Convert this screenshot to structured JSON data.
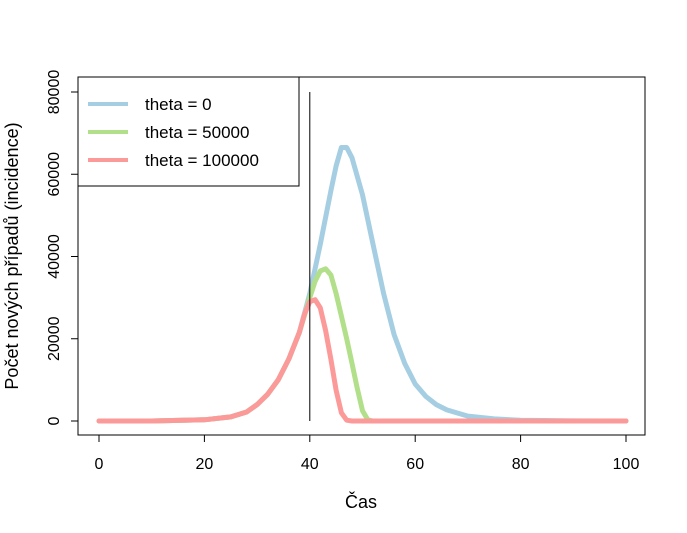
{
  "chart_data": {
    "type": "line",
    "title": "",
    "xlabel": "Čas",
    "ylabel": "Počet nových případů (incidence)",
    "xlim": [
      0,
      100
    ],
    "ylim": [
      0,
      80000
    ],
    "x_ticks": [
      0,
      20,
      40,
      60,
      80,
      100
    ],
    "y_ticks": [
      0,
      20000,
      40000,
      60000,
      80000
    ],
    "x_tick_labels": [
      "0",
      "20",
      "40",
      "60",
      "80",
      "100"
    ],
    "y_tick_labels": [
      "0",
      "20000",
      "40000",
      "60000",
      "80000"
    ],
    "grid": false,
    "legend_position": "top-left",
    "vertical_line": {
      "x": 40,
      "y_range": [
        0,
        80000
      ],
      "color": "#000000"
    },
    "series": [
      {
        "name": "theta = 0",
        "color": "#a6cee3",
        "points": [
          [
            0,
            0
          ],
          [
            10,
            0
          ],
          [
            20,
            300
          ],
          [
            25,
            1000
          ],
          [
            28,
            2200
          ],
          [
            30,
            4000
          ],
          [
            32,
            6500
          ],
          [
            34,
            10000
          ],
          [
            36,
            15000
          ],
          [
            38,
            21500
          ],
          [
            40,
            31000
          ],
          [
            42,
            43000
          ],
          [
            44,
            56000
          ],
          [
            45,
            62000
          ],
          [
            46,
            66500
          ],
          [
            47,
            66500
          ],
          [
            48,
            64000
          ],
          [
            50,
            55000
          ],
          [
            52,
            43000
          ],
          [
            54,
            31000
          ],
          [
            56,
            21000
          ],
          [
            58,
            14000
          ],
          [
            60,
            9000
          ],
          [
            62,
            6000
          ],
          [
            64,
            4000
          ],
          [
            66,
            2700
          ],
          [
            70,
            1200
          ],
          [
            75,
            500
          ],
          [
            80,
            200
          ],
          [
            90,
            30
          ],
          [
            100,
            0
          ]
        ]
      },
      {
        "name": "theta = 50000",
        "color": "#b2df8a",
        "points": [
          [
            0,
            0
          ],
          [
            10,
            0
          ],
          [
            20,
            300
          ],
          [
            25,
            1000
          ],
          [
            28,
            2200
          ],
          [
            30,
            4000
          ],
          [
            32,
            6500
          ],
          [
            34,
            10000
          ],
          [
            36,
            15000
          ],
          [
            38,
            21500
          ],
          [
            40,
            30000
          ],
          [
            41,
            34000
          ],
          [
            42,
            36500
          ],
          [
            43,
            37000
          ],
          [
            44,
            35500
          ],
          [
            45,
            31000
          ],
          [
            46,
            25500
          ],
          [
            47,
            20000
          ],
          [
            48,
            14000
          ],
          [
            49,
            8000
          ],
          [
            50,
            2500
          ],
          [
            51,
            300
          ],
          [
            52,
            0
          ],
          [
            60,
            0
          ],
          [
            80,
            0
          ],
          [
            100,
            0
          ]
        ]
      },
      {
        "name": "theta = 100000",
        "color": "#fb9a99",
        "points": [
          [
            0,
            0
          ],
          [
            10,
            0
          ],
          [
            20,
            300
          ],
          [
            25,
            1000
          ],
          [
            28,
            2200
          ],
          [
            30,
            4000
          ],
          [
            32,
            6500
          ],
          [
            34,
            10000
          ],
          [
            36,
            15000
          ],
          [
            38,
            21500
          ],
          [
            39,
            26000
          ],
          [
            40,
            29000
          ],
          [
            41,
            29500
          ],
          [
            42,
            27500
          ],
          [
            43,
            22000
          ],
          [
            44,
            15000
          ],
          [
            45,
            7500
          ],
          [
            46,
            2000
          ],
          [
            47,
            200
          ],
          [
            48,
            0
          ],
          [
            60,
            0
          ],
          [
            80,
            0
          ],
          [
            100,
            0
          ]
        ]
      }
    ]
  }
}
